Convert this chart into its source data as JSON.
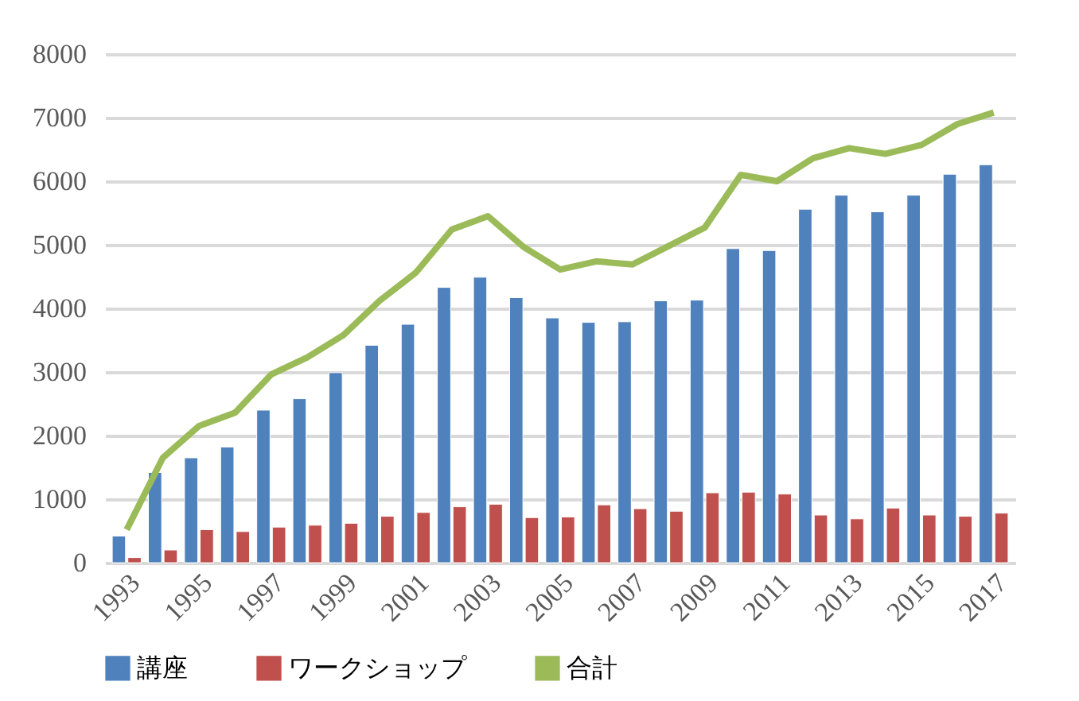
{
  "chart_data": {
    "type": "bar",
    "categories": [
      "1993",
      null,
      "1995",
      null,
      "1997",
      null,
      "1999",
      null,
      "2001",
      null,
      "2003",
      null,
      "2005",
      null,
      "2007",
      null,
      "2009",
      null,
      "2011",
      null,
      "2013",
      null,
      "2015",
      null,
      "2017"
    ],
    "series": [
      {
        "name": "講座",
        "color": "#4f81bd",
        "values": [
          420,
          1420,
          1650,
          1820,
          2400,
          2580,
          2990,
          3420,
          3750,
          4330,
          4490,
          4170,
          3850,
          3780,
          3790,
          4120,
          4130,
          4940,
          4910,
          5560,
          5780,
          5520,
          5780,
          6110,
          6260
        ]
      },
      {
        "name": "ワークショップ",
        "color": "#c0504d",
        "values": [
          80,
          200,
          520,
          490,
          560,
          590,
          620,
          730,
          790,
          880,
          920,
          710,
          720,
          910,
          850,
          810,
          1100,
          1110,
          1080,
          750,
          690,
          860,
          750,
          730,
          780
        ]
      },
      {
        "name": "合計",
        "color": "#9bbb59",
        "type": "line",
        "values": [
          520,
          1650,
          2150,
          2360,
          2960,
          3230,
          3580,
          4120,
          4560,
          5240,
          5450,
          4960,
          4610,
          4740,
          4690,
          4980,
          5270,
          6100,
          6000,
          6360,
          6520,
          6430,
          6570,
          6900,
          7080
        ]
      }
    ],
    "ylim": [
      0,
      8000
    ],
    "yticks": [
      0,
      1000,
      2000,
      3000,
      4000,
      5000,
      6000,
      7000,
      8000
    ],
    "grid": "y",
    "legend": "bottom",
    "marker": "none"
  }
}
